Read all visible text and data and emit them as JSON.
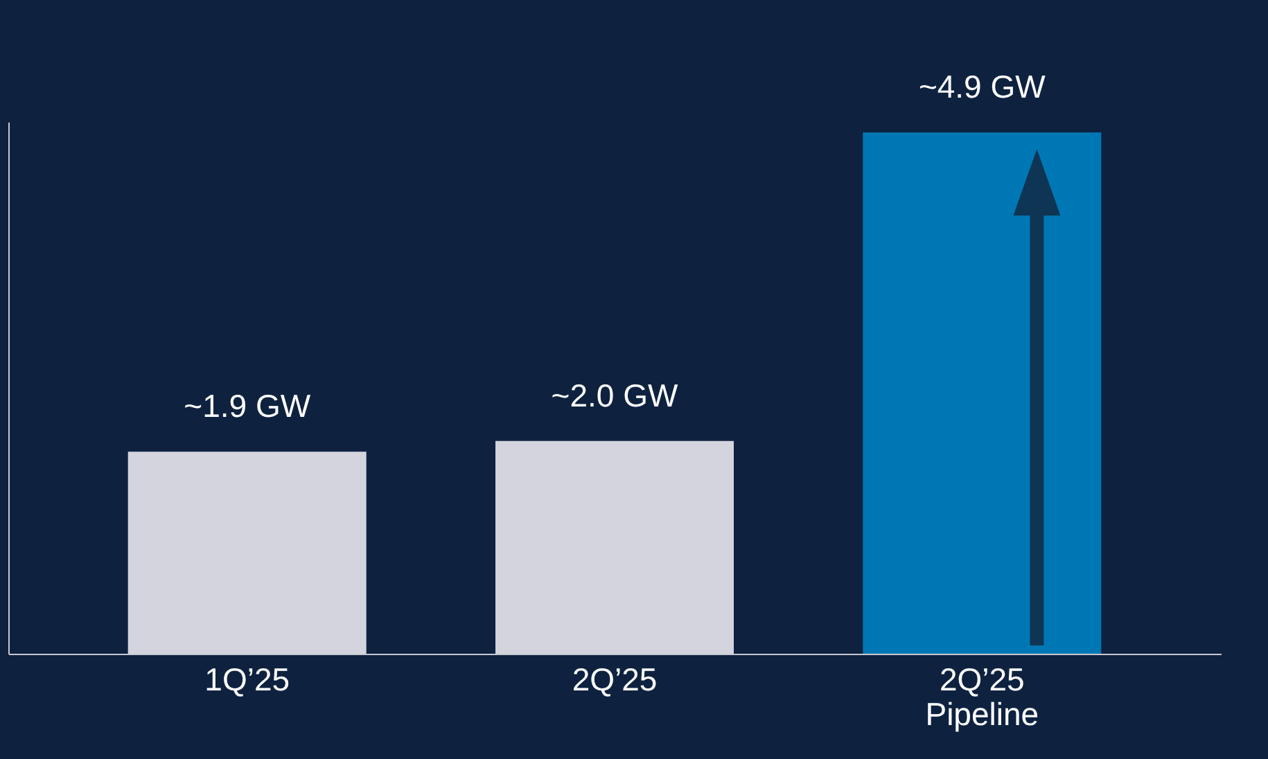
{
  "chart_data": {
    "type": "bar",
    "categories": [
      "1Q’25",
      "2Q’25",
      "2Q’25\nPipeline"
    ],
    "values": [
      1.9,
      2.0,
      4.9
    ],
    "colors": [
      "#d3d4de",
      "#d3d4de",
      "#0077b5"
    ],
    "value_labels": [
      "~1.9 GW",
      "~2.0 GW",
      "~4.9 GW"
    ],
    "tick_labels": "x",
    "grid": false
  }
}
